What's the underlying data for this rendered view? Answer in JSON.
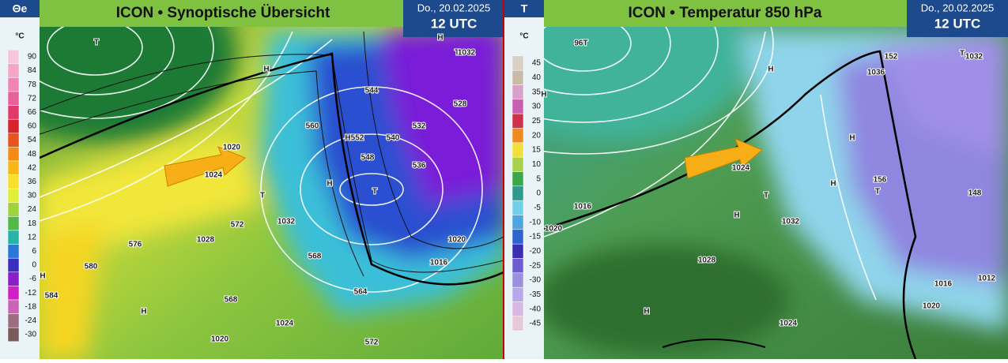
{
  "panels": [
    {
      "scale": {
        "title": "Θe",
        "unit": "°C",
        "labels": [
          90,
          84,
          78,
          72,
          66,
          60,
          54,
          48,
          42,
          36,
          30,
          24,
          18,
          12,
          6,
          0,
          -6,
          -12,
          -18,
          -24,
          -30
        ]
      },
      "title": "ICON • Synoptische Übersicht",
      "date": "Do., 20.02.2025",
      "time": "12 UTC",
      "map_labels": [
        "T",
        "H",
        "1020",
        "T",
        "H",
        "H",
        "T",
        "1032",
        "1028",
        "1020",
        "1016",
        "1024",
        "1020",
        "H",
        "H",
        "576",
        "580",
        "584",
        "568",
        "564",
        "572",
        "568",
        "560",
        "552",
        "548",
        "544",
        "540",
        "536",
        "532",
        "528",
        "T",
        "1032",
        "H",
        "1024",
        "572"
      ]
    },
    {
      "scale": {
        "title": "T",
        "unit": "°C",
        "labels": [
          45,
          40,
          35,
          30,
          25,
          20,
          15,
          10,
          5,
          0,
          -5,
          -10,
          -15,
          -20,
          -25,
          -30,
          -35,
          -40,
          -45
        ]
      },
      "title": "ICON • Temperatur 850 hPa",
      "date": "Do., 20.02.2025",
      "time": "12 UTC",
      "map_labels": [
        "96T",
        "H",
        "1036",
        "T",
        "1032",
        "H",
        "H",
        "T",
        "H",
        "1024",
        "1016",
        "1020",
        "1032",
        "1028",
        "T",
        "156",
        "148",
        "152",
        "1016",
        "1012",
        "1020",
        "1024",
        "H",
        "H"
      ]
    }
  ]
}
